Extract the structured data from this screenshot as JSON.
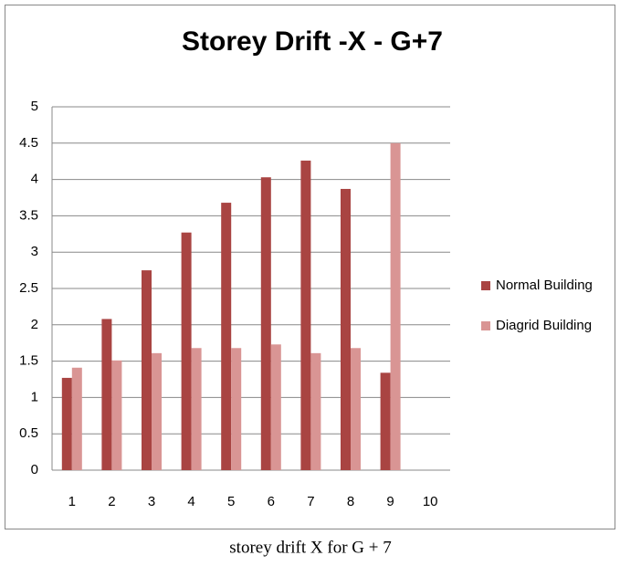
{
  "chart_data": {
    "type": "bar",
    "title": "Storey Drift -X - G+7",
    "categories": [
      "1",
      "2",
      "3",
      "4",
      "5",
      "6",
      "7",
      "8",
      "9",
      "10"
    ],
    "series": [
      {
        "name": "Normal Building",
        "color": "#a94442",
        "values": [
          1.27,
          2.08,
          2.75,
          3.27,
          3.68,
          4.03,
          4.26,
          3.87,
          1.34,
          null
        ]
      },
      {
        "name": "Diagrid Building",
        "color": "#d99594",
        "values": [
          1.41,
          1.51,
          1.61,
          1.68,
          1.68,
          1.73,
          1.61,
          1.68,
          4.5,
          null
        ]
      }
    ],
    "ylim": [
      0,
      5
    ],
    "yticks": [
      0,
      0.5,
      1,
      1.5,
      2,
      2.5,
      3,
      3.5,
      4,
      4.5,
      5
    ],
    "grid": true,
    "legend": "right",
    "caption": "storey drift X for G + 7"
  }
}
